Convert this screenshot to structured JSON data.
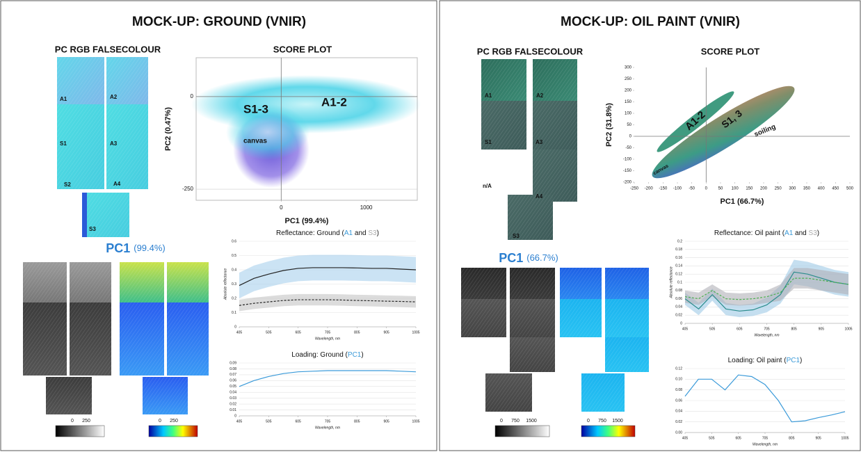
{
  "panels": [
    {
      "title": "MOCK-UP: GROUND (VNIR)",
      "falsecolour_title": "PC RGB FALSECOLOUR",
      "tile_labels": [
        "A1",
        "A2",
        "S1",
        "A3",
        "S2",
        "A4",
        "S3"
      ],
      "pc_name": "PC1",
      "pc_value": "(99.4%)",
      "colorbar_gray": [
        "0",
        "250"
      ],
      "colorbar_color": [
        "0",
        "250"
      ]
    },
    {
      "title": "MOCK-UP: OIL PAINT (VNIR)",
      "falsecolour_title": "PC RGB FALSECOLOUR",
      "tile_labels": [
        "A1",
        "A2",
        "S1",
        "A3",
        "n/A",
        "A4",
        "S3"
      ],
      "pc_name": "PC1",
      "pc_value": "(66.7%)",
      "colorbar_gray": [
        "0",
        "750",
        "1500"
      ],
      "colorbar_color": [
        "0",
        "750",
        "1500"
      ]
    }
  ],
  "chart_data": [
    {
      "type": "scatter",
      "title": "SCORE PLOT",
      "x_label": "PC1 (99.4%)",
      "y_label": "PC2 (0.47%)",
      "xlim": [
        -1000,
        1600
      ],
      "ylim": [
        -280,
        105
      ],
      "xticks": [
        0,
        1000
      ],
      "yticks": [
        0,
        -250
      ],
      "grid": true,
      "annotations": [
        "S1-3",
        "A1-2",
        "canvas"
      ]
    },
    {
      "type": "line",
      "title_parts": [
        "Reflectance: Ground (",
        " and ",
        ")"
      ],
      "x_label": "Wavelength, nm",
      "y_label": "Absolute reflectance",
      "x": [
        405,
        455,
        505,
        555,
        605,
        655,
        705,
        755,
        805,
        855,
        905,
        955,
        1005
      ],
      "xlim": [
        405,
        1005
      ],
      "ylim": [
        0,
        0.6
      ],
      "xticks": [
        405,
        505,
        605,
        705,
        805,
        905,
        1005
      ],
      "yticks": [
        0,
        0.1,
        0.2,
        0.3,
        0.4,
        0.5,
        0.6
      ],
      "grid": true,
      "series": [
        {
          "name": "A1",
          "title_color": "#3a9ad9",
          "color": "#222",
          "band_color": "#a8d0ec",
          "dash": false,
          "values": [
            0.29,
            0.34,
            0.37,
            0.395,
            0.41,
            0.415,
            0.415,
            0.415,
            0.413,
            0.41,
            0.41,
            0.405,
            0.4
          ],
          "std": [
            0.09,
            0.09,
            0.09,
            0.09,
            0.09,
            0.09,
            0.09,
            0.09,
            0.09,
            0.09,
            0.09,
            0.09,
            0.09
          ]
        },
        {
          "name": "S3",
          "title_color": "#aaaaaa",
          "color": "#222",
          "band_color": "#c4c4c4",
          "dash": true,
          "values": [
            0.15,
            0.165,
            0.175,
            0.185,
            0.19,
            0.19,
            0.19,
            0.188,
            0.185,
            0.183,
            0.18,
            0.178,
            0.175
          ],
          "std": [
            0.04,
            0.04,
            0.04,
            0.04,
            0.04,
            0.04,
            0.04,
            0.04,
            0.04,
            0.04,
            0.04,
            0.04,
            0.04
          ]
        }
      ]
    },
    {
      "type": "line",
      "title_parts": [
        "Loading: Ground (",
        ")"
      ],
      "x_label": "Wavelength, nm",
      "x": [
        405,
        455,
        505,
        555,
        605,
        655,
        705,
        755,
        805,
        855,
        905,
        955,
        1005
      ],
      "xlim": [
        405,
        1005
      ],
      "ylim": [
        0,
        0.09
      ],
      "xticks": [
        405,
        505,
        605,
        705,
        805,
        905,
        1005
      ],
      "yticks": [
        0,
        0.01,
        0.02,
        0.03,
        0.04,
        0.05,
        0.06,
        0.07,
        0.08,
        0.09
      ],
      "grid": true,
      "series": [
        {
          "name": "PC1",
          "title_color": "#3a9ad9",
          "color": "#3a9ad9",
          "dash": false,
          "values": [
            0.05,
            0.06,
            0.067,
            0.072,
            0.075,
            0.076,
            0.077,
            0.077,
            0.077,
            0.077,
            0.077,
            0.076,
            0.075
          ]
        }
      ]
    },
    {
      "type": "scatter",
      "title": "SCORE PLOT",
      "x_label": "PC1 (66.7%)",
      "y_label": "PC2 (31.8%)",
      "xlim": [
        -250,
        500
      ],
      "ylim": [
        -200,
        300
      ],
      "xticks": [
        -250,
        -200,
        -150,
        -100,
        -50,
        0,
        50,
        100,
        150,
        200,
        250,
        300,
        350,
        400,
        450,
        500
      ],
      "yticks": [
        -200,
        -150,
        -100,
        -50,
        0,
        50,
        100,
        150,
        200,
        250,
        300
      ],
      "grid": false,
      "annotations": [
        "A1-2",
        "S1, 3",
        "soiling",
        "canvas"
      ]
    },
    {
      "type": "line",
      "title_parts": [
        "Reflectance: Oil paint (",
        " and ",
        ")"
      ],
      "x_label": "Wavelength, nm",
      "y_label": "Absolute reflectance",
      "x": [
        405,
        455,
        505,
        555,
        605,
        655,
        705,
        755,
        805,
        855,
        905,
        955,
        1005
      ],
      "xlim": [
        405,
        1005
      ],
      "ylim": [
        0,
        0.2
      ],
      "xticks": [
        405,
        505,
        605,
        705,
        805,
        905,
        1005
      ],
      "yticks": [
        0,
        0.02,
        0.04,
        0.06,
        0.08,
        0.1,
        0.12,
        0.14,
        0.16,
        0.18,
        0.2
      ],
      "grid": true,
      "series": [
        {
          "name": "A1",
          "title_color": "#3a9ad9",
          "color": "#2a8c8c",
          "band_color": "#9fc9e6",
          "dash": false,
          "values": [
            0.06,
            0.035,
            0.07,
            0.035,
            0.03,
            0.033,
            0.045,
            0.07,
            0.125,
            0.12,
            0.11,
            0.1,
            0.095
          ],
          "std": [
            0.015,
            0.015,
            0.015,
            0.015,
            0.015,
            0.015,
            0.018,
            0.022,
            0.03,
            0.03,
            0.03,
            0.03,
            0.03
          ]
        },
        {
          "name": "S3",
          "title_color": "#aaaaaa",
          "color": "#4caf50",
          "band_color": "#b0b0b8",
          "dash": true,
          "values": [
            0.065,
            0.06,
            0.08,
            0.06,
            0.058,
            0.06,
            0.065,
            0.075,
            0.11,
            0.11,
            0.105,
            0.1,
            0.095
          ],
          "std": [
            0.015,
            0.015,
            0.015,
            0.015,
            0.015,
            0.015,
            0.015,
            0.02,
            0.025,
            0.025,
            0.025,
            0.025,
            0.025
          ]
        }
      ]
    },
    {
      "type": "line",
      "title_parts": [
        "Loading: Oil paint (",
        ")"
      ],
      "x_label": "Wavelength, nm",
      "x": [
        405,
        455,
        505,
        555,
        605,
        655,
        705,
        755,
        805,
        855,
        905,
        955,
        1005
      ],
      "xlim": [
        405,
        1005
      ],
      "ylim": [
        0,
        0.12
      ],
      "xticks": [
        405,
        505,
        605,
        705,
        805,
        905,
        1005
      ],
      "yticks": [
        {
          "value": 0,
          "label": "0.00"
        },
        0.02,
        0.04,
        0.06,
        0.08,
        {
          "value": 0.1,
          "label": "0.10"
        },
        0.12
      ],
      "grid": true,
      "series": [
        {
          "name": "PC1",
          "title_color": "#3a9ad9",
          "color": "#3a9ad9",
          "dash": false,
          "values": [
            0.068,
            0.1,
            0.1,
            0.08,
            0.108,
            0.105,
            0.09,
            0.06,
            0.02,
            0.022,
            0.028,
            0.033,
            0.039
          ]
        }
      ]
    }
  ]
}
